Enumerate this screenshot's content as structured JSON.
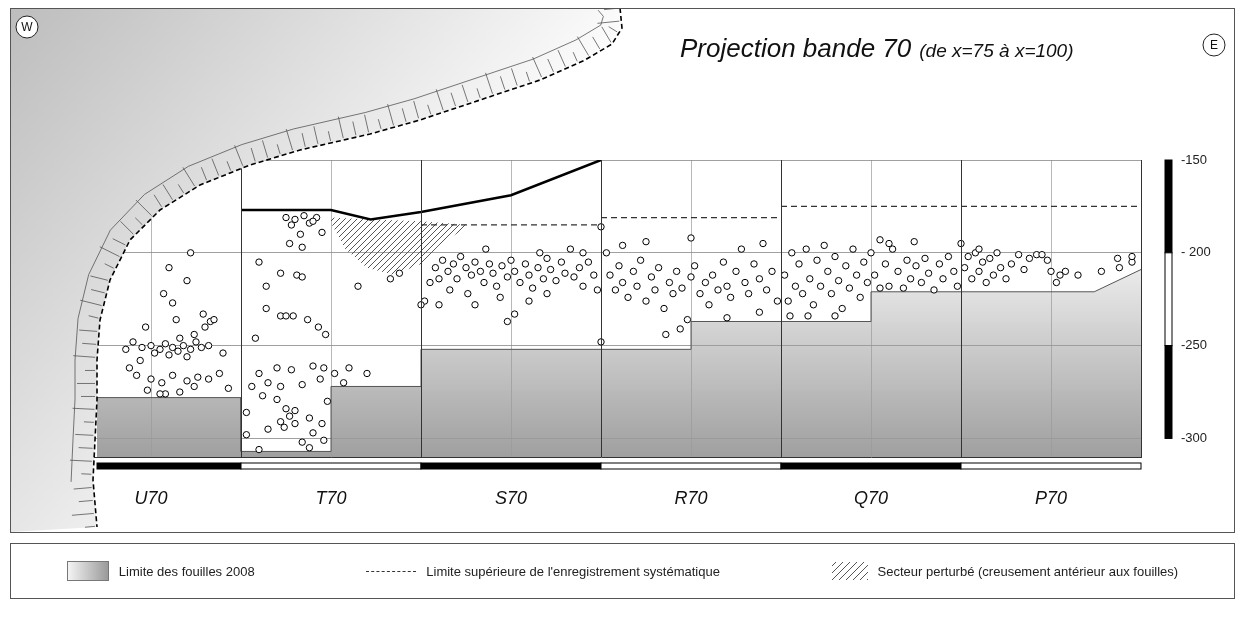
{
  "chart_data": {
    "type": "scatter",
    "title": "Projection bande 70",
    "subtitle": "(de x=75 à x=100)",
    "annotations": [
      "W",
      "E"
    ],
    "categories": [
      "U70",
      "T70",
      "S70",
      "R70",
      "Q70",
      "P70"
    ],
    "xlim": [
      0,
      6
    ],
    "xticks": [
      0,
      0.5,
      1,
      1.5,
      2,
      2.5,
      3,
      3.5,
      4,
      4.5,
      5,
      5.5,
      6
    ],
    "ylim": [
      -310,
      -150
    ],
    "yticks": [
      -150,
      {
        "value": -200,
        "label": "- 200"
      },
      -250,
      -300
    ],
    "grid": true,
    "tick_labels": "y",
    "legend": "bottom",
    "series": [
      {
        "name": "Limite des fouilles 2008",
        "type": "area",
        "color": "#9a9a9a",
        "x": [
          0.2,
          1,
          1,
          1.5,
          1.5,
          2,
          2,
          3.5,
          3.5,
          4.5,
          4.5,
          5.74,
          6
        ],
        "values": [
          -278,
          -278,
          -307,
          -307,
          -272,
          -272,
          -252,
          -252,
          -237,
          -237,
          -221,
          -221,
          -209
        ]
      },
      {
        "name": "Limite supérieure de l'enregistrement systématique",
        "type": "line",
        "line_style": "dashed",
        "color": "#333333",
        "x": [
          2,
          3,
          3,
          3,
          4,
          4,
          4,
          6
        ],
        "values": [
          -185,
          -185,
          null,
          -181,
          -181,
          null,
          -175,
          -175
        ]
      },
      {
        "name": "Secteur perturbé (creusement antérieur aux fouilles)",
        "type": "hatched_area",
        "color": "#555555",
        "x": [
          1.5,
          1.72,
          2.0,
          2.27,
          2.1,
          2.0,
          1.85,
          1.7,
          1.58,
          1.5
        ],
        "values": [
          -181,
          -182,
          -183,
          -185,
          -196,
          -206,
          -212,
          -208,
          -198,
          -184
        ]
      },
      {
        "type": "line",
        "line_style": "solid",
        "color": "#000000",
        "x": [
          1,
          1.5,
          1.72,
          2,
          2.5,
          3
        ],
        "values": [
          -177,
          -177,
          -182,
          -178,
          -169,
          -150
        ]
      },
      {
        "type": "scatter",
        "marker": "circle",
        "color": "#000000",
        "x": [
          0.4,
          0.45,
          0.5,
          0.55,
          0.58,
          0.62,
          0.65,
          0.68,
          0.72,
          0.75,
          0.78,
          0.82,
          0.52,
          0.6,
          0.7,
          0.66,
          0.74,
          0.8,
          0.83,
          0.79,
          0.85,
          0.62,
          0.57,
          0.7,
          0.6,
          0.72,
          0.47,
          0.64,
          0.42,
          0.5,
          0.56,
          0.62,
          0.7,
          0.76,
          0.82,
          0.48,
          0.58,
          0.66,
          0.74,
          0.88,
          0.93,
          0.9,
          0.55,
          0.44,
          0.38,
          0.36,
          1.25,
          1.3,
          1.35,
          1.42,
          1.28,
          1.38,
          1.33,
          1.45,
          1.27,
          1.34,
          1.4,
          1.1,
          1.14,
          1.22,
          1.31,
          1.34,
          1.14,
          1.22,
          1.25,
          1.29,
          1.37,
          1.47,
          1.08,
          1.43,
          1.1,
          1.2,
          1.28,
          1.4,
          1.46,
          1.44,
          1.52,
          1.57,
          1.15,
          1.22,
          1.34,
          1.06,
          1.12,
          1.2,
          1.25,
          1.27,
          1.3,
          1.22,
          1.24,
          1.3,
          1.38,
          1.45,
          1.15,
          1.03,
          1.4,
          1.34,
          1.46,
          1.1,
          1.38,
          1.03,
          1.48,
          1.6,
          1.7,
          1.83,
          1.88,
          1.65,
          2.02,
          2.05,
          2.08,
          2.1,
          2.12,
          2.15,
          2.18,
          2.2,
          2.22,
          2.25,
          2.28,
          2.3,
          2.33,
          2.35,
          2.38,
          2.4,
          2.42,
          2.45,
          2.48,
          2.5,
          2.52,
          2.55,
          2.58,
          2.6,
          2.62,
          2.65,
          2.68,
          2.7,
          2.72,
          2.75,
          2.78,
          2.8,
          2.83,
          2.85,
          2.88,
          2.9,
          2.93,
          2.96,
          2.98,
          2.26,
          2.44,
          2.6,
          2.52,
          2.48,
          2.3,
          2.7,
          2.16,
          2.36,
          2.66,
          2.9,
          2.1,
          2.0,
          3.0,
          3.0,
          3.03,
          3.05,
          3.08,
          3.1,
          3.12,
          3.15,
          3.18,
          3.2,
          3.22,
          3.25,
          3.28,
          3.3,
          3.32,
          3.35,
          3.38,
          3.4,
          3.42,
          3.45,
          3.48,
          3.5,
          3.52,
          3.55,
          3.58,
          3.6,
          3.62,
          3.65,
          3.68,
          3.7,
          3.72,
          3.75,
          3.78,
          3.8,
          3.82,
          3.85,
          3.88,
          3.9,
          3.92,
          3.95,
          3.98,
          3.12,
          3.25,
          3.44,
          3.7,
          3.88,
          3.36,
          3.5,
          4.02,
          4.04,
          4.06,
          4.08,
          4.1,
          4.12,
          4.14,
          4.16,
          4.18,
          4.2,
          4.22,
          4.24,
          4.26,
          4.28,
          4.3,
          4.32,
          4.34,
          4.36,
          4.38,
          4.4,
          4.42,
          4.44,
          4.46,
          4.48,
          4.5,
          4.52,
          4.55,
          4.58,
          4.6,
          4.62,
          4.65,
          4.68,
          4.7,
          4.72,
          4.75,
          4.78,
          4.8,
          4.82,
          4.85,
          4.88,
          4.9,
          4.93,
          4.96,
          4.98,
          4.15,
          4.3,
          4.05,
          4.6,
          4.74,
          4.55,
          5.02,
          5.04,
          5.06,
          5.08,
          5.1,
          5.12,
          5.14,
          5.16,
          5.18,
          5.2,
          5.22,
          5.25,
          5.28,
          5.32,
          5.35,
          5.38,
          5.42,
          5.45,
          5.48,
          5.5,
          5.53,
          5.55,
          5.58,
          5.65,
          5.78,
          5.87,
          5.88,
          5.95,
          5.95,
          5.0,
          5.1
        ],
        "values": [
          -248,
          -251,
          -250,
          -252,
          -249,
          -251,
          -253,
          -250,
          -252,
          -248,
          -251,
          -250,
          -254,
          -255,
          -256,
          -246,
          -244,
          -240,
          -237,
          -233,
          -236,
          -227,
          -222,
          -215,
          -208,
          -200,
          -240,
          -236,
          -266,
          -268,
          -270,
          -266,
          -269,
          -267,
          -268,
          -274,
          -276,
          -275,
          -272,
          -265,
          -273,
          -254,
          -276,
          -258,
          -262,
          -252,
          -181,
          -182,
          -180,
          -181,
          -185,
          -184,
          -190,
          -189,
          -195,
          -197,
          -183,
          -205,
          -218,
          -211,
          -212,
          -213,
          -230,
          -234,
          -234,
          -234,
          -236,
          -244,
          -246,
          -240,
          -265,
          -262,
          -263,
          -261,
          -262,
          -268,
          -265,
          -270,
          -270,
          -272,
          -271,
          -272,
          -277,
          -279,
          -284,
          -288,
          -285,
          -291,
          -294,
          -292,
          -289,
          -292,
          -295,
          -298,
          -297,
          -302,
          -301,
          -306,
          -305,
          -286,
          -280,
          -262,
          -265,
          -214,
          -211,
          -218,
          -226,
          -216,
          -208,
          -214,
          -204,
          -210,
          -206,
          -214,
          -202,
          -208,
          -212,
          -205,
          -210,
          -216,
          -206,
          -211,
          -218,
          -207,
          -213,
          -204,
          -210,
          -216,
          -206,
          -212,
          -219,
          -208,
          -214,
          -203,
          -209,
          -215,
          -205,
          -211,
          -198,
          -213,
          -208,
          -218,
          -205,
          -212,
          -220,
          -222,
          -224,
          -226,
          -233,
          -237,
          -228,
          -222,
          -220,
          -198,
          -200,
          -200,
          -228,
          -228,
          -186,
          -248,
          -200,
          -212,
          -220,
          -207,
          -216,
          -224,
          -210,
          -218,
          -204,
          -226,
          -213,
          -220,
          -208,
          -230,
          -216,
          -222,
          -210,
          -219,
          -236,
          -213,
          -207,
          -222,
          -216,
          -228,
          -212,
          -220,
          -205,
          -218,
          -224,
          -210,
          -198,
          -216,
          -222,
          -206,
          -214,
          -195,
          -220,
          -210,
          -226,
          -196,
          -194,
          -241,
          -235,
          -232,
          -244,
          -192,
          -212,
          -226,
          -200,
          -218,
          -206,
          -222,
          -198,
          -214,
          -228,
          -204,
          -218,
          -196,
          -210,
          -222,
          -202,
          -215,
          -230,
          -207,
          -219,
          -198,
          -212,
          -224,
          -205,
          -216,
          -200,
          -212,
          -219,
          -206,
          -218,
          -198,
          -210,
          -219,
          -204,
          -214,
          -207,
          -216,
          -203,
          -211,
          -220,
          -206,
          -214,
          -202,
          -210,
          -218,
          -234,
          -234,
          -234,
          -195,
          -194,
          -193,
          -208,
          -202,
          -214,
          -200,
          -210,
          -205,
          -216,
          -203,
          -212,
          -200,
          -208,
          -214,
          -206,
          -201,
          -209,
          -203,
          -201,
          -201,
          -204,
          -210,
          -216,
          -212,
          -210,
          -212,
          -210,
          -203,
          -208,
          -205,
          -202,
          -195,
          -198
        ]
      }
    ]
  }
}
